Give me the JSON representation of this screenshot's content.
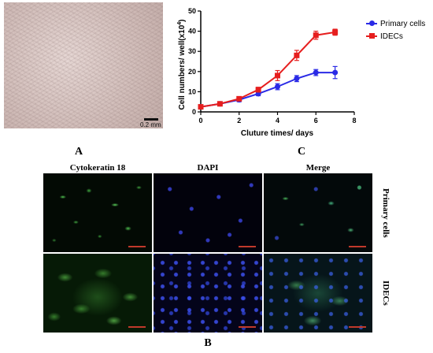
{
  "panel_a": {
    "letter": "A",
    "scale_label": "0.2 mm"
  },
  "panel_c": {
    "letter": "C"
  },
  "panel_b": {
    "letter": "B",
    "columns": [
      "Cytokeratin 18",
      "DAPI",
      "Merge"
    ],
    "rows": [
      "Primary cells",
      "IDECs"
    ]
  },
  "colors": {
    "primary_series": "#2a2ae6",
    "idec_series": "#e61e1e",
    "scale_bar": "#c0392b"
  },
  "chart_data": {
    "type": "line",
    "xlabel": "Cluture times/ days",
    "ylabel": "Cell numbers/ well(x10",
    "ylabel_sup": "4",
    "ylabel_tail": ")",
    "xlim": [
      0,
      8
    ],
    "ylim": [
      0,
      50
    ],
    "xticks": [
      0,
      2,
      4,
      6,
      8
    ],
    "yticks": [
      0,
      10,
      20,
      30,
      40,
      50
    ],
    "grid": false,
    "legend_position": "right",
    "series": [
      {
        "name": "Primary cells",
        "color": "#2a2ae6",
        "marker": "circle",
        "x": [
          0,
          1,
          2,
          3,
          4,
          5,
          6,
          7
        ],
        "y": [
          2.5,
          4,
          6,
          9,
          12.5,
          16.5,
          19.5,
          19.5
        ],
        "err": [
          0.5,
          0.6,
          1,
          1,
          1.5,
          1.5,
          1.5,
          3
        ]
      },
      {
        "name": "IDECs",
        "color": "#e61e1e",
        "marker": "square",
        "x": [
          0,
          1,
          2,
          3,
          4,
          5,
          6,
          7
        ],
        "y": [
          2.5,
          4,
          6.5,
          11,
          18,
          28,
          38,
          39.5
        ],
        "err": [
          0.5,
          0.6,
          1,
          1.2,
          2.5,
          2.5,
          2,
          1.5
        ]
      }
    ]
  }
}
